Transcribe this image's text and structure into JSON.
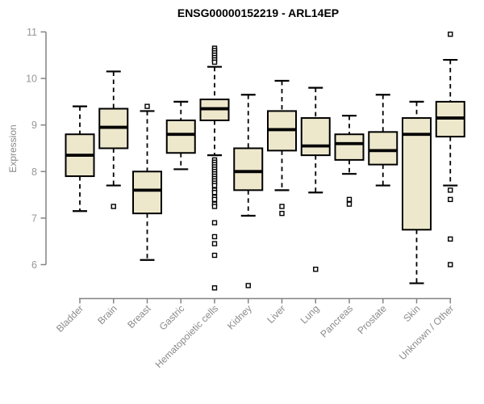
{
  "chart_data": {
    "type": "box",
    "title": "ENSG00000152219 - ARL14EP",
    "ylabel": "Expression",
    "xlabel": "",
    "ylim": [
      6,
      11
    ],
    "yticks": [
      6,
      7,
      8,
      9,
      10,
      11
    ],
    "grid": false,
    "legend": false,
    "colors": {
      "box_fill": "#ede8cc",
      "box_stroke": "#000000",
      "median": "#000000",
      "axis": "#848484",
      "tick_label": "#979797",
      "outlier_fill": "#ffffff"
    },
    "categories": [
      "Bladder",
      "Brain",
      "Breast",
      "Gastric",
      "Hematopoietic cells",
      "Kidney",
      "Liver",
      "Lung",
      "Pancreas",
      "Prostate",
      "Skin",
      "Unknown / Other"
    ],
    "series": [
      {
        "category": "Bladder",
        "whisker_low": 7.15,
        "q1": 7.9,
        "median": 8.35,
        "q3": 8.8,
        "whisker_high": 9.4,
        "outliers": []
      },
      {
        "category": "Brain",
        "whisker_low": 7.7,
        "q1": 8.5,
        "median": 8.95,
        "q3": 9.35,
        "whisker_high": 10.15,
        "outliers": [
          7.25
        ]
      },
      {
        "category": "Breast",
        "whisker_low": 6.1,
        "q1": 7.1,
        "median": 7.6,
        "q3": 8.0,
        "whisker_high": 9.3,
        "outliers": [
          9.4
        ]
      },
      {
        "category": "Gastric",
        "whisker_low": 8.05,
        "q1": 8.4,
        "median": 8.8,
        "q3": 9.1,
        "whisker_high": 9.5,
        "outliers": []
      },
      {
        "category": "Hematopoietic cells",
        "whisker_low": 8.35,
        "q1": 9.1,
        "median": 9.35,
        "q3": 9.55,
        "whisker_high": 10.25,
        "outliers": [
          10.65,
          10.6,
          10.55,
          10.5,
          10.45,
          10.4,
          10.35,
          8.25,
          8.2,
          8.15,
          8.1,
          8.05,
          8.0,
          7.95,
          7.9,
          7.85,
          7.8,
          7.75,
          7.7,
          7.6,
          7.55,
          7.45,
          7.4,
          7.3,
          7.25,
          6.9,
          6.6,
          6.45,
          6.2,
          5.5
        ]
      },
      {
        "category": "Kidney",
        "whisker_low": 7.05,
        "q1": 7.6,
        "median": 8.0,
        "q3": 8.5,
        "whisker_high": 9.65,
        "outliers": [
          5.55
        ]
      },
      {
        "category": "Liver",
        "whisker_low": 7.6,
        "q1": 8.45,
        "median": 8.9,
        "q3": 9.3,
        "whisker_high": 9.95,
        "outliers": [
          7.25,
          7.1
        ]
      },
      {
        "category": "Lung",
        "whisker_low": 7.55,
        "q1": 8.35,
        "median": 8.55,
        "q3": 9.15,
        "whisker_high": 9.8,
        "outliers": [
          5.9
        ]
      },
      {
        "category": "Pancreas",
        "whisker_low": 7.95,
        "q1": 8.25,
        "median": 8.6,
        "q3": 8.8,
        "whisker_high": 9.2,
        "outliers": [
          7.4,
          7.3
        ]
      },
      {
        "category": "Prostate",
        "whisker_low": 7.7,
        "q1": 8.15,
        "median": 8.45,
        "q3": 8.85,
        "whisker_high": 9.65,
        "outliers": []
      },
      {
        "category": "Skin",
        "whisker_low": 5.6,
        "q1": 6.75,
        "median": 8.8,
        "q3": 9.15,
        "whisker_high": 9.5,
        "outliers": []
      },
      {
        "category": "Unknown / Other",
        "whisker_low": 7.7,
        "q1": 8.75,
        "median": 9.15,
        "q3": 9.5,
        "whisker_high": 10.4,
        "outliers": [
          10.95,
          7.6,
          7.4,
          6.55,
          6.0
        ]
      }
    ]
  }
}
